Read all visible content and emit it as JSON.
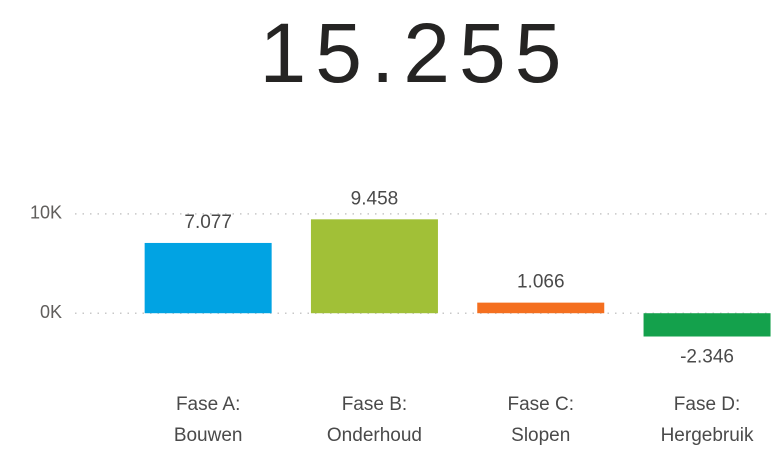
{
  "kpi": "15.255",
  "chart_data": {
    "type": "bar",
    "categories": [
      [
        "Fase A:",
        "Bouwen"
      ],
      [
        "Fase B:",
        "Onderhoud"
      ],
      [
        "Fase C:",
        "Slopen"
      ],
      [
        "Fase D:",
        "Hergebruik"
      ]
    ],
    "values": [
      7077,
      9458,
      1066,
      -2346
    ],
    "value_labels": [
      "7.077",
      "9.458",
      "1.066",
      "-2.346"
    ],
    "colors": [
      "#01a3e3",
      "#a1c037",
      "#f46f1f",
      "#14a14c"
    ],
    "ylim": [
      -3000,
      11000
    ],
    "yticks": [
      {
        "value": 0,
        "label": "0K"
      },
      {
        "value": 10000,
        "label": "10K"
      }
    ],
    "grid": true
  }
}
